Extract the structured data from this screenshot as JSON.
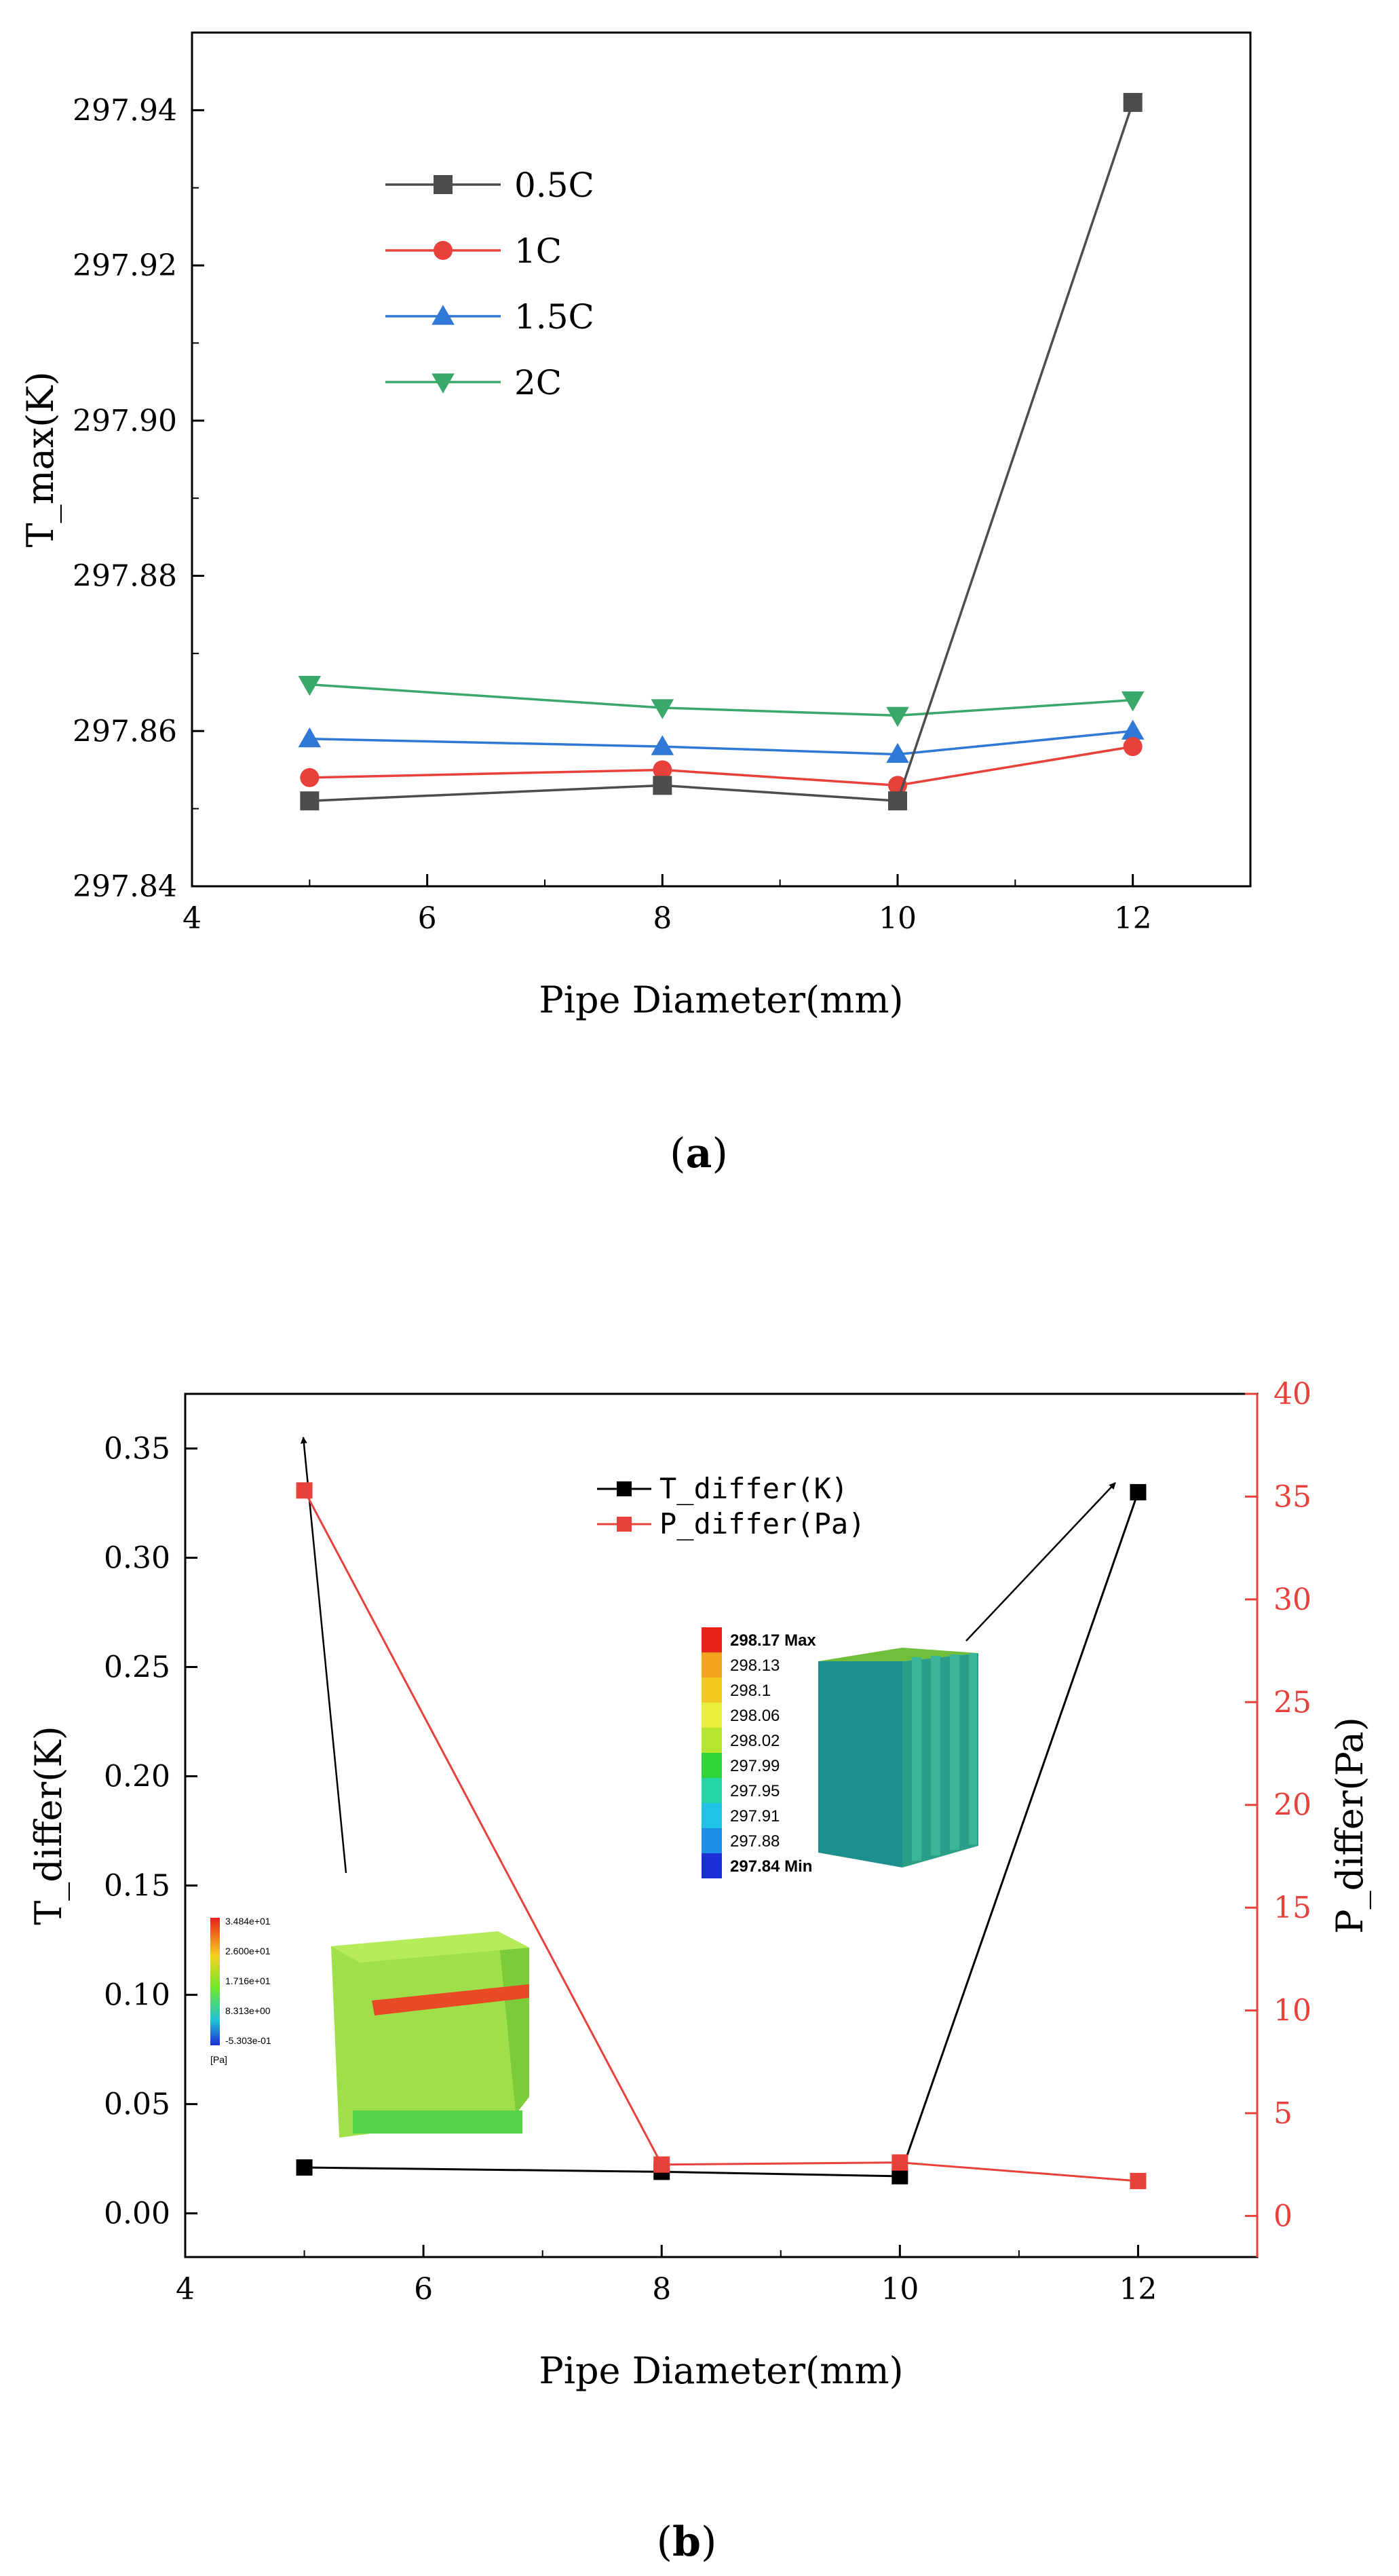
{
  "chart_data": [
    {
      "type": "line",
      "panel_label": "a",
      "xlabel": "Pipe Diameter(mm)",
      "ylabel": "T_max(K)",
      "xlim": [
        4,
        13
      ],
      "ylim": [
        297.84,
        297.95
      ],
      "xticks": [
        "4",
        "6",
        "8",
        "10",
        "12"
      ],
      "yticks": [
        "297.84",
        "297.86",
        "297.88",
        "297.90",
        "297.92",
        "297.94"
      ],
      "legend_position": "upper-left",
      "x": [
        5,
        8,
        10,
        12
      ],
      "series": [
        {
          "name": "0.5C",
          "marker": "square",
          "color": "#4d4d4d",
          "values": [
            297.851,
            297.853,
            297.851,
            297.941
          ]
        },
        {
          "name": "1C",
          "marker": "circle",
          "color": "#e8403a",
          "values": [
            297.854,
            297.855,
            297.853,
            297.858
          ]
        },
        {
          "name": "1.5C",
          "marker": "triangle-up",
          "color": "#2f78d6",
          "values": [
            297.859,
            297.858,
            297.857,
            297.86
          ]
        },
        {
          "name": "2C",
          "marker": "triangle-down",
          "color": "#3aa86a",
          "values": [
            297.866,
            297.863,
            297.862,
            297.864
          ]
        }
      ]
    },
    {
      "type": "line",
      "panel_label": "b",
      "xlabel": "Pipe Diameter(mm)",
      "ylabel_left": "T_differ(K)",
      "ylabel_right": "P_differ(Pa)",
      "xlim": [
        4,
        13
      ],
      "ylim_left": [
        -0.02,
        0.375
      ],
      "ylim_right": [
        -2,
        40
      ],
      "xticks": [
        "4",
        "6",
        "8",
        "10",
        "12"
      ],
      "yticks_left": [
        "0.00",
        "0.05",
        "0.10",
        "0.15",
        "0.20",
        "0.25",
        "0.30",
        "0.35"
      ],
      "yticks_right": [
        "0",
        "5",
        "10",
        "15",
        "20",
        "25",
        "30",
        "35",
        "40"
      ],
      "legend_position": "top-center",
      "x": [
        5,
        8,
        10,
        12
      ],
      "series": [
        {
          "name": "T_differ(K)",
          "axis": "left",
          "marker": "square",
          "color": "#000000",
          "values": [
            0.021,
            0.019,
            0.017,
            0.33
          ]
        },
        {
          "name": "P_differ(Pa)",
          "axis": "right",
          "marker": "square",
          "color": "#e8403a",
          "values": [
            35.3,
            2.5,
            2.6,
            1.7
          ]
        }
      ],
      "inset_temperature": {
        "legend": [
          "298.17 Max",
          "298.13",
          "298.1",
          "298.06",
          "298.02",
          "297.99",
          "297.95",
          "297.91",
          "297.88",
          "297.84 Min"
        ],
        "colors": [
          "#e8211b",
          "#f2a31b",
          "#f5c81f",
          "#e8f03a",
          "#b6e62d",
          "#2fd43a",
          "#22d6a8",
          "#1fc3e8",
          "#1f8ee8",
          "#1b2fd6"
        ]
      },
      "inset_pressure": {
        "legend": [
          "3.484e+01",
          "2.600e+01",
          "1.716e+01",
          "8.313e+00",
          "-5.303e-01",
          "[Pa]"
        ]
      }
    }
  ],
  "colors": {
    "axis": "#000000",
    "right_axis": "#e8403a"
  }
}
